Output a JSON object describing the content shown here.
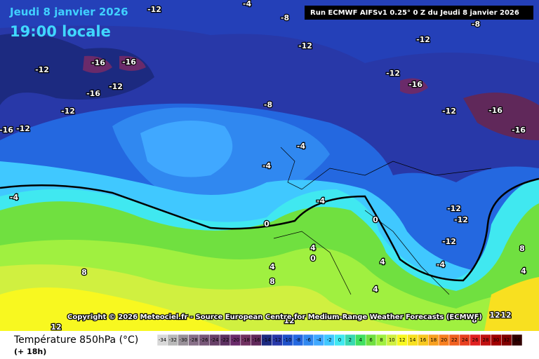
{
  "header": {
    "date": "Jeudi 8 janvier 2026",
    "time": "19:00 locale",
    "run": "Run ECMWF AIFSv1 0.25° 0 Z du Jeudi 8 janvier 2026"
  },
  "copyright": "Copyright © 2026 Meteociel.fr - Source European Centre for Medium-Range Weather Forecasts (ECMWF)",
  "contour_labels": [
    "-12",
    "-4",
    "-8",
    "-8",
    "-12",
    "-12",
    "-12",
    "-16",
    "-16",
    "-12",
    "-16",
    "-12",
    "-16",
    "-12",
    "-12",
    "-16",
    "-12",
    "-16",
    "-16",
    "-8",
    "-4",
    "-4",
    "-4",
    "-4",
    "0",
    "0",
    "-12",
    "-12",
    "-12",
    "4",
    "0",
    "4",
    "4",
    "-4",
    "8",
    "4",
    "8",
    "8",
    "4",
    "12",
    "12",
    "8",
    "12",
    "12"
  ],
  "legend": {
    "title": "Température 850hPa (°C)",
    "step": "(+ 18h)",
    "ticks": [
      -34,
      -32,
      -30,
      -28,
      -26,
      -24,
      -22,
      -20,
      -18,
      -16,
      -14,
      -12,
      -10,
      -8,
      -6,
      -4,
      -2,
      0,
      2,
      4,
      6,
      8,
      10,
      12,
      14,
      16,
      18,
      20,
      22,
      24,
      26,
      28,
      30,
      32,
      34
    ],
    "colors": [
      "#d8d8d8",
      "#b8b8b8",
      "#989098",
      "#887088",
      "#785878",
      "#684068",
      "#5c3060",
      "#6a2a6a",
      "#703060",
      "#60285a",
      "#1c2a80",
      "#2838a8",
      "#1e50c8",
      "#2468e0",
      "#3088f0",
      "#40a8ff",
      "#40c8ff",
      "#40e8f0",
      "#38d8b0",
      "#40e060",
      "#70e040",
      "#a0f040",
      "#d0f040",
      "#f8f820",
      "#f8e020",
      "#f8c820",
      "#f8a020",
      "#f88020",
      "#f06020",
      "#e84020",
      "#e02020",
      "#c01010",
      "#a00000",
      "#800000",
      "#300000"
    ]
  }
}
